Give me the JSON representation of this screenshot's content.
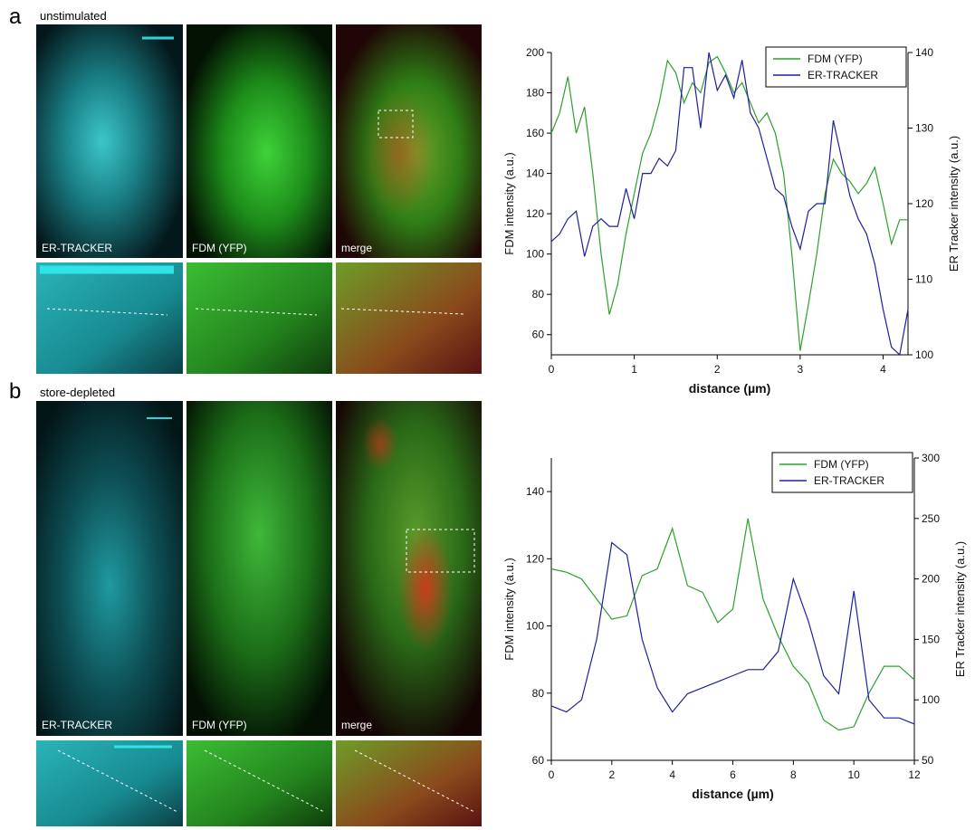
{
  "panels": [
    {
      "letter": "a",
      "condition": "unstimulated",
      "images": [
        "ER-TRACKER",
        "FDM (YFP)",
        "merge"
      ]
    },
    {
      "letter": "b",
      "condition": "store-depleted",
      "images": [
        "ER-TRACKER",
        "FDM (YFP)",
        "merge"
      ]
    }
  ],
  "chart_data": [
    {
      "type": "line",
      "xlabel": "distance (µm)",
      "ylabel": "FDM intensity (a.u.)",
      "y2label": "ER Tracker intensity (a.u.)",
      "x": [
        0,
        0.1,
        0.2,
        0.3,
        0.4,
        0.5,
        0.6,
        0.7,
        0.8,
        0.9,
        1.0,
        1.1,
        1.2,
        1.3,
        1.4,
        1.5,
        1.6,
        1.7,
        1.8,
        1.9,
        2.0,
        2.1,
        2.2,
        2.3,
        2.4,
        2.5,
        2.6,
        2.7,
        2.8,
        2.9,
        3.0,
        3.1,
        3.2,
        3.3,
        3.4,
        3.5,
        3.6,
        3.7,
        3.8,
        3.9,
        4.0,
        4.1,
        4.2,
        4.3
      ],
      "series": [
        {
          "name": "FDM (YFP)",
          "color": "#2ca02c",
          "values": [
            160,
            170,
            188,
            160,
            173,
            140,
            100,
            70,
            85,
            110,
            130,
            150,
            160,
            175,
            196,
            190,
            175,
            185,
            180,
            195,
            198,
            190,
            180,
            185,
            175,
            165,
            170,
            160,
            140,
            100,
            52,
            75,
            100,
            130,
            147,
            140,
            136,
            130,
            135,
            143,
            125,
            105,
            117,
            117
          ]
        },
        {
          "name": "ER-TRACKER",
          "color": "#1f1f9e",
          "axis": "y2",
          "values": [
            115,
            116,
            118,
            119,
            113,
            117,
            118,
            117,
            117,
            122,
            118,
            124,
            124,
            126,
            125,
            127,
            138,
            138,
            130,
            140,
            135,
            137,
            134,
            139,
            132,
            130,
            126,
            122,
            121,
            117,
            114,
            119,
            120,
            120,
            131,
            126,
            121,
            118,
            116,
            112,
            106,
            101,
            100,
            106
          ]
        }
      ],
      "xlim": [
        0,
        4.3
      ],
      "xticks": [
        0,
        1,
        2,
        3,
        4
      ],
      "ylim": [
        50,
        200
      ],
      "yticks": [
        60,
        80,
        100,
        120,
        140,
        160,
        180,
        200
      ],
      "y2lim": [
        100,
        140
      ],
      "y2ticks": [
        100,
        110,
        120,
        130,
        140
      ],
      "legend": "upper right"
    },
    {
      "type": "line",
      "xlabel": "distance (µm)",
      "ylabel": "FDM intensity (a.u.)",
      "y2label": "ER Tracker intensity (a.u.)",
      "x": [
        0,
        0.5,
        1,
        1.5,
        2,
        2.5,
        3,
        3.5,
        4,
        4.5,
        5,
        5.5,
        6,
        6.5,
        7,
        7.5,
        8,
        8.5,
        9,
        9.5,
        10,
        10.5,
        11,
        11.5,
        12
      ],
      "series": [
        {
          "name": "FDM (YFP)",
          "color": "#2ca02c",
          "values": [
            117,
            116,
            114,
            108,
            102,
            103,
            115,
            117,
            129,
            112,
            110,
            101,
            105,
            132,
            108,
            97,
            88,
            83,
            72,
            69,
            70,
            80,
            88,
            88,
            84
          ]
        },
        {
          "name": "ER-TRACKER",
          "color": "#1f1f9e",
          "axis": "y2",
          "values": [
            95,
            90,
            100,
            150,
            230,
            220,
            150,
            110,
            90,
            105,
            110,
            115,
            120,
            125,
            125,
            140,
            200,
            165,
            120,
            105,
            190,
            100,
            85,
            85,
            80
          ]
        }
      ],
      "xlim": [
        0,
        12
      ],
      "xticks": [
        0,
        2,
        4,
        6,
        8,
        10,
        12
      ],
      "ylim": [
        60,
        150
      ],
      "yticks": [
        60,
        80,
        100,
        120,
        140
      ],
      "y2lim": [
        50,
        300
      ],
      "y2ticks": [
        50,
        100,
        150,
        200,
        250,
        300
      ],
      "legend": "upper right"
    }
  ]
}
